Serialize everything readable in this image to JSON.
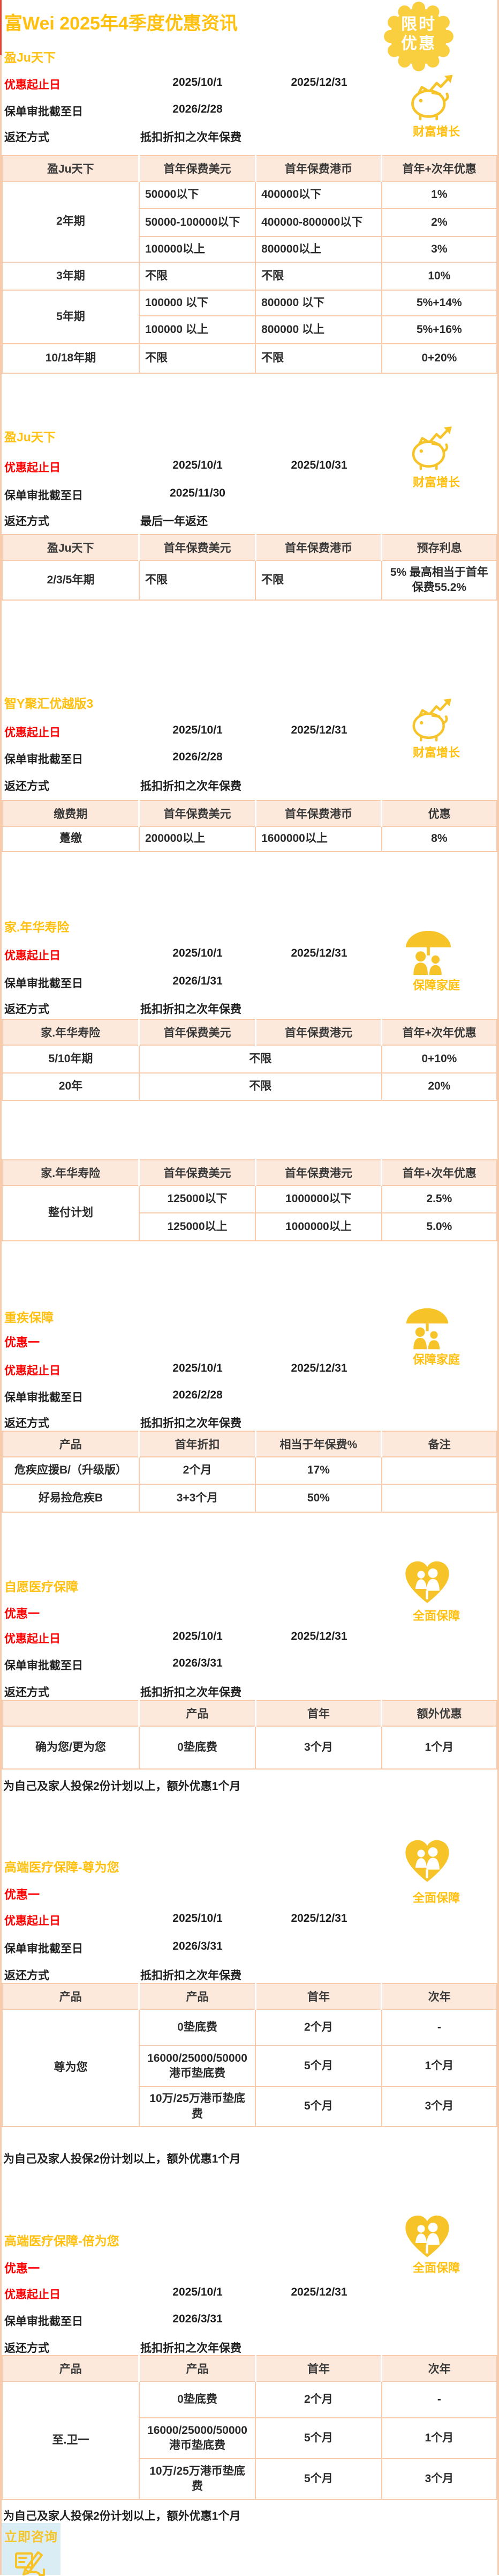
{
  "page": {
    "title": "富Wei 2025年4季度优惠资讯",
    "badge": {
      "text": "限时\n优惠"
    },
    "colors": {
      "accent_yellow": "#ffc010",
      "accent_red": "#ff0000",
      "table_border": "#f8cbad",
      "header_bg": "#fce9db",
      "badge_yellow": "#f9cf3f",
      "icon_yellow": "#f6c428",
      "cta_bg": "#daecf4"
    }
  },
  "sections": [
    {
      "title": "盈Ju天下",
      "icon": {
        "type": "piggy-growth",
        "label": "财富增长"
      },
      "fields": [
        {
          "label": "优惠起止日",
          "value1": "2025/10/1",
          "value2": "2025/12/31"
        },
        {
          "label": "保单审批截至日",
          "value1": "2026/2/28"
        },
        {
          "label": "返还方式",
          "value_left": "抵扣折扣之次年保费"
        }
      ],
      "tables": [
        {
          "headers": [
            "盈Ju天下",
            "首年保费美元",
            "首年保费港币",
            "首年+次年优惠"
          ],
          "col_widths": [
            27.7,
            23.5,
            25.5,
            23.3
          ],
          "rows": [
            {
              "h": 51,
              "cells": [
                {
                  "t": "2年期",
                  "rs": 3
                },
                {
                  "t": "50000以下",
                  "al": "left"
                },
                {
                  "t": "400000以下",
                  "al": "left"
                },
                {
                  "t": "1%"
                }
              ]
            },
            {
              "h": 52,
              "cells": [
                {
                  "t": "50000-100000以下",
                  "al": "left"
                },
                {
                  "t": "400000-800000以下",
                  "al": "left"
                },
                {
                  "t": "2%"
                }
              ]
            },
            {
              "h": 48,
              "cells": [
                {
                  "t": "100000以上",
                  "al": "left"
                },
                {
                  "t": "800000以上",
                  "al": "left"
                },
                {
                  "t": "3%"
                }
              ]
            },
            {
              "h": 52,
              "cells": [
                {
                  "t": "3年期"
                },
                {
                  "t": "不限",
                  "al": "left"
                },
                {
                  "t": "不限",
                  "al": "left"
                },
                {
                  "t": "10%"
                }
              ]
            },
            {
              "h": 48,
              "cells": [
                {
                  "t": "5年期",
                  "rs": 2
                },
                {
                  "t": "100000 以下",
                  "al": "left"
                },
                {
                  "t": "800000 以下",
                  "al": "left"
                },
                {
                  "t": "5%+14%"
                }
              ]
            },
            {
              "h": 52,
              "cells": [
                {
                  "t": "100000 以上",
                  "al": "left"
                },
                {
                  "t": "800000 以上",
                  "al": "left"
                },
                {
                  "t": "5%+16%"
                }
              ]
            },
            {
              "h": 55,
              "cells": [
                {
                  "t": "10/18年期"
                },
                {
                  "t": "不限",
                  "al": "left"
                },
                {
                  "t": "不限",
                  "al": "left"
                },
                {
                  "t": "0+20%"
                }
              ]
            }
          ]
        }
      ]
    },
    {
      "title": "盈Ju天下",
      "icon": {
        "type": "piggy-growth",
        "label": "财富增长"
      },
      "fields": [
        {
          "label": "优惠起止日",
          "value1": "2025/10/1",
          "value2": "2025/10/31"
        },
        {
          "label": "保单审批截至日",
          "value1": "2025/11/30"
        },
        {
          "label": "返还方式",
          "value_left": "最后一年返还"
        }
      ],
      "tables": [
        {
          "headers": [
            "盈Ju天下",
            "首年保费美元",
            "首年保费港币",
            "预存利息"
          ],
          "col_widths": [
            27.7,
            23.5,
            25.5,
            23.3
          ],
          "rows": [
            {
              "h": 74,
              "cells": [
                {
                  "t": "2/3/5年期"
                },
                {
                  "t": "不限",
                  "al": "left"
                },
                {
                  "t": "不限",
                  "al": "left"
                },
                {
                  "t": "5% 最高相当于首年保费55.2%"
                }
              ]
            }
          ]
        }
      ]
    },
    {
      "title": "智Y聚汇优越版3",
      "icon": {
        "type": "piggy-growth",
        "label": "财富增长"
      },
      "fields": [
        {
          "label": "优惠起止日",
          "value1": "2025/10/1",
          "value2": "2025/12/31"
        },
        {
          "label": "保单审批截至日",
          "value1": "2026/2/28"
        },
        {
          "label": "返还方式",
          "value_left": "抵扣折扣之次年保费"
        }
      ],
      "tables": [
        {
          "headers": [
            "缴费期",
            "首年保费美元",
            "首年保费港币",
            "优惠"
          ],
          "col_widths": [
            27.7,
            23.5,
            25.5,
            23.3
          ],
          "rows": [
            {
              "h": 47,
              "cells": [
                {
                  "t": "躉缴"
                },
                {
                  "t": "200000以上",
                  "al": "left"
                },
                {
                  "t": "1600000以上",
                  "al": "left"
                },
                {
                  "t": "8%"
                }
              ]
            }
          ]
        }
      ]
    },
    {
      "title": "家.年华寿险",
      "icon": {
        "type": "family-umbrella",
        "label": "保障家庭"
      },
      "fields": [
        {
          "label": "优惠起止日",
          "value1": "2025/10/1",
          "value2": "2025/12/31"
        },
        {
          "label": "保单审批截至日",
          "value1": "2026/1/31"
        },
        {
          "label": "返还方式",
          "value_left": "抵扣折扣之次年保费"
        }
      ],
      "tables": [
        {
          "headers": [
            "家.年华寿险",
            "首年保费美元",
            "首年保费港元",
            "首年+次年优惠"
          ],
          "col_widths": [
            27.7,
            23.5,
            25.5,
            23.3
          ],
          "rows": [
            {
              "h": 52,
              "cells": [
                {
                  "t": "5/10年期"
                },
                {
                  "t": "不限",
                  "cs": 2
                },
                {
                  "t": "0+10%"
                }
              ]
            },
            {
              "h": 51,
              "cells": [
                {
                  "t": "20年"
                },
                {
                  "t": "不限",
                  "cs": 2
                },
                {
                  "t": "20%"
                }
              ]
            }
          ]
        },
        {
          "headers": [
            "家.年华寿险",
            "首年保费美元",
            "首年保费港元",
            "首年+次年优惠"
          ],
          "col_widths": [
            27.7,
            23.5,
            25.5,
            23.3
          ],
          "rows": [
            {
              "h": 51,
              "cells": [
                {
                  "t": "整付计划",
                  "rs": 2
                },
                {
                  "t": "125000以下"
                },
                {
                  "t": "1000000以下"
                },
                {
                  "t": "2.5%"
                }
              ]
            },
            {
              "h": 52,
              "cells": [
                {
                  "t": "125000以上"
                },
                {
                  "t": "1000000以上"
                },
                {
                  "t": "5.0%"
                }
              ]
            }
          ]
        }
      ]
    },
    {
      "title": "重疾保障",
      "promo": "优惠一",
      "icon": {
        "type": "family-umbrella",
        "label": "保障家庭"
      },
      "fields": [
        {
          "label": "优惠起止日",
          "value1": "2025/10/1",
          "value2": "2025/12/31"
        },
        {
          "label": "保单审批截至日",
          "value1": "2026/2/28"
        },
        {
          "label": "返还方式",
          "value_left": "抵扣折扣之次年保费"
        }
      ],
      "tables": [
        {
          "headers": [
            "产品",
            "首年折扣",
            "相当于年保费%",
            "备注"
          ],
          "col_widths": [
            27.7,
            23.5,
            25.5,
            23.3
          ],
          "rows": [
            {
              "h": 51,
              "cells": [
                {
                  "t": "危疾应援B/（升级版）"
                },
                {
                  "t": "2个月"
                },
                {
                  "t": "17%"
                },
                {
                  "t": ""
                }
              ]
            },
            {
              "h": 52,
              "cells": [
                {
                  "t": "好易捡危疾B"
                },
                {
                  "t": "3+3个月"
                },
                {
                  "t": "50%"
                },
                {
                  "t": ""
                }
              ]
            }
          ]
        }
      ]
    },
    {
      "title": "自愿医疗保障",
      "promo": "优惠一",
      "icon": {
        "type": "heart-family",
        "label": "全面保障"
      },
      "fields": [
        {
          "label": "优惠起止日",
          "value1": "2025/10/1",
          "value2": "2025/12/31"
        },
        {
          "label": "保单审批截至日",
          "value1": "2026/3/31"
        },
        {
          "label": "返还方式",
          "value_left": "抵扣折扣之次年保费"
        }
      ],
      "note": "为自己及家人投保2份计划以上，额外优惠1个月",
      "tables": [
        {
          "headers": [
            "",
            "产品",
            "首年",
            "额外优惠"
          ],
          "col_widths": [
            27.7,
            23.5,
            25.5,
            23.3
          ],
          "rows": [
            {
              "h": 80,
              "cells": [
                {
                  "t": "确为您/更为您"
                },
                {
                  "t": "0垫底费"
                },
                {
                  "t": "3个月"
                },
                {
                  "t": "1个月"
                }
              ]
            }
          ]
        }
      ]
    },
    {
      "title": "高端医疗保障-尊为您",
      "promo": "优惠一",
      "icon": {
        "type": "heart-family",
        "label": "全面保障"
      },
      "fields": [
        {
          "label": "优惠起止日",
          "value1": "2025/10/1",
          "value2": "2025/12/31"
        },
        {
          "label": "保单审批截至日",
          "value1": "2026/3/31"
        },
        {
          "label": "返还方式",
          "value_left": "抵扣折扣之次年保费"
        }
      ],
      "note": "为自己及家人投保2份计划以上，额外优惠1个月",
      "tables": [
        {
          "headers": [
            "产品",
            "产品",
            "首年",
            "次年"
          ],
          "col_widths": [
            27.7,
            23.5,
            25.5,
            23.3
          ],
          "rows": [
            {
              "h": 68,
              "cells": [
                {
                  "t": "尊为您",
                  "rs": 3
                },
                {
                  "t": "0垫底费"
                },
                {
                  "t": "2个月"
                },
                {
                  "t": "-"
                }
              ]
            },
            {
              "h": 76,
              "cells": [
                {
                  "t": "16000/25000/50000港币垫底费"
                },
                {
                  "t": "5个月"
                },
                {
                  "t": "1个月"
                }
              ]
            },
            {
              "h": 75,
              "cells": [
                {
                  "t": "10万/25万港币垫底费"
                },
                {
                  "t": "5个月"
                },
                {
                  "t": "3个月"
                }
              ]
            }
          ]
        }
      ]
    },
    {
      "title": "高端医疗保障-倍为您",
      "promo": "优惠一",
      "icon": {
        "type": "heart-family",
        "label": "全面保障"
      },
      "fields": [
        {
          "label": "优惠起止日",
          "value1": "2025/10/1",
          "value2": "2025/12/31"
        },
        {
          "label": "保单审批截至日",
          "value1": "2026/3/31"
        },
        {
          "label": "返还方式",
          "value_left": "抵扣折扣之次年保费"
        }
      ],
      "note": "为自己及家人投保2份计划以上，额外优惠1个月",
      "tables": [
        {
          "headers": [
            "产品",
            "产品",
            "首年",
            "次年"
          ],
          "col_widths": [
            27.7,
            23.5,
            25.5,
            23.3
          ],
          "rows": [
            {
              "h": 68,
              "cells": [
                {
                  "t": "至.卫一",
                  "rs": 3
                },
                {
                  "t": "0垫底费"
                },
                {
                  "t": "2个月"
                },
                {
                  "t": "-"
                }
              ]
            },
            {
              "h": 76,
              "cells": [
                {
                  "t": "16000/25000/50000港币垫底费"
                },
                {
                  "t": "5个月"
                },
                {
                  "t": "1个月"
                }
              ]
            },
            {
              "h": 76,
              "cells": [
                {
                  "t": "10万/25万港币垫底费"
                },
                {
                  "t": "5个月"
                },
                {
                  "t": "3个月"
                }
              ]
            }
          ]
        }
      ]
    }
  ],
  "footer": {
    "cta": "立即咨询"
  }
}
